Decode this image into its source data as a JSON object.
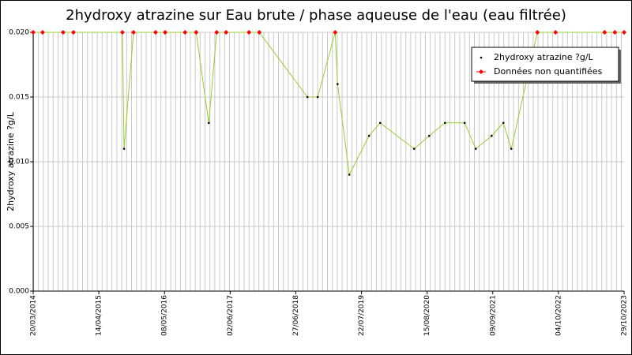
{
  "chart_data": {
    "type": "line",
    "title": "2hydroxy atrazine sur Eau brute / phase aqueuse de l'eau (eau filtrée)",
    "y_label": "2hydroxy atrazine ?g/L",
    "x": [
      "20/03/2014",
      "15/05/2014",
      "14/09/2014",
      "14/11/2014",
      "01/09/2015",
      "11/09/2015",
      "06/11/2015",
      "16/03/2016",
      "12/05/2016",
      "07/09/2016",
      "12/11/2016",
      "26/01/2017",
      "14/03/2017",
      "09/05/2017",
      "22/09/2017",
      "22/11/2017",
      "04/09/2018",
      "04/11/2018",
      "16/02/2019",
      "02/03/2019",
      "11/05/2019",
      "05/09/2019",
      "10/11/2019",
      "30/05/2020",
      "27/08/2020",
      "29/11/2020",
      "26/03/2021",
      "31/05/2021",
      "02/09/2021",
      "11/11/2021",
      "28/12/2021",
      "01/06/2022",
      "17/09/2022",
      "05/07/2023",
      "04/09/2023",
      "29/10/2023"
    ],
    "series": [
      {
        "name": "2hydroxy atrazine ?g/L",
        "color": "#000000",
        "line_color": "#9acd32",
        "values": [
          0.02,
          0.02,
          0.02,
          0.02,
          0.02,
          0.011,
          0.02,
          0.02,
          0.02,
          0.02,
          0.02,
          0.013,
          0.02,
          0.02,
          0.02,
          0.02,
          0.015,
          0.015,
          0.02,
          0.016,
          0.009,
          0.012,
          0.013,
          0.011,
          0.012,
          0.013,
          0.013,
          0.011,
          0.012,
          0.013,
          0.011,
          0.02,
          0.02,
          0.02,
          0.02,
          0.02
        ]
      },
      {
        "name": "Données non quantifiées",
        "color": "#ff0000",
        "values": [
          0.02,
          0.02,
          0.02,
          0.02,
          0.02,
          null,
          0.02,
          0.02,
          0.02,
          0.02,
          0.02,
          null,
          0.02,
          0.02,
          0.02,
          0.02,
          null,
          null,
          0.02,
          null,
          null,
          null,
          null,
          null,
          null,
          null,
          null,
          null,
          null,
          null,
          null,
          0.02,
          0.02,
          0.02,
          0.02,
          0.02
        ]
      }
    ],
    "xlim": [
      "20/03/2014",
      "29/10/2023"
    ],
    "xticks": [
      "20/03/2014",
      "14/04/2015",
      "08/05/2016",
      "02/06/2017",
      "27/06/2018",
      "22/07/2019",
      "15/08/2020",
      "09/09/2021",
      "04/10/2022",
      "29/10/2023"
    ],
    "ylim": [
      0,
      0.02
    ],
    "yticks": [
      {
        "value": 0,
        "label": "0.000"
      },
      {
        "value": 0.005,
        "label": "0.005"
      },
      {
        "value": 0.01,
        "label": "0.010"
      },
      {
        "value": 0.015,
        "label": "0.015"
      },
      {
        "value": 0.02,
        "label": "0.020"
      }
    ],
    "grid": true,
    "legend": "upper right"
  }
}
